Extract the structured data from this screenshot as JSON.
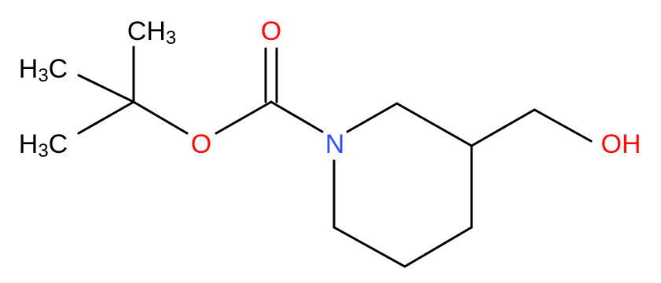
{
  "atoms": [
    {
      "parts": [
        "CH",
        "3"
      ]
    },
    {
      "parts": [
        "H",
        "3",
        "C"
      ]
    },
    {
      "parts": [
        "H",
        "3",
        "C"
      ]
    },
    {
      "parts": [
        "O"
      ]
    },
    {
      "parts": [
        "O"
      ]
    },
    {
      "parts": [
        "N"
      ]
    },
    {
      "parts": [
        "OH"
      ]
    }
  ]
}
